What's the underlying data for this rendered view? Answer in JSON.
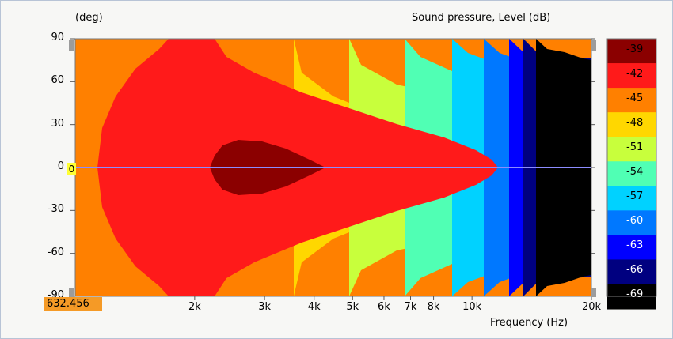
{
  "chart_data": {
    "type": "heatmap",
    "title": "Sound pressure, Level  (dB)",
    "ylabel": "(deg)",
    "xlabel": "Frequency  (Hz)",
    "yticks": [
      "90",
      "60",
      "30",
      "0",
      "-30",
      "-60",
      "-90"
    ],
    "yvals": [
      90,
      60,
      30,
      0,
      -30,
      -60,
      -90
    ],
    "ylim": [
      -90,
      90
    ],
    "xticks": [
      "2k",
      "3k",
      "4k",
      "5k",
      "6k",
      "7k",
      "8k",
      "10k",
      "20k"
    ],
    "xvals": [
      2000,
      3000,
      4000,
      5000,
      6000,
      7000,
      8000,
      10000,
      20000
    ],
    "xlim": [
      1000,
      20000
    ],
    "xscale": "log",
    "colorbar_labels": [
      "-39",
      "-42",
      "-45",
      "-48",
      "-51",
      "-54",
      "-57",
      "-60",
      "-63",
      "-66",
      "-69"
    ],
    "colorbar_levels": [
      -39,
      -42,
      -45,
      -48,
      -51,
      -54,
      -57,
      -60,
      -63,
      -66,
      -69
    ],
    "band_colors": [
      "#8b0000",
      "#ff1a1a",
      "#ff8000",
      "#ffd700",
      "#c8ff3c",
      "#50ffb4",
      "#00d2ff",
      "#0078ff",
      "#0000ff",
      "#000080",
      "#000000"
    ],
    "cursor_readout": "632.456",
    "zero_marker": "0",
    "colors": {
      "reference_line": "#8c8cff"
    }
  }
}
